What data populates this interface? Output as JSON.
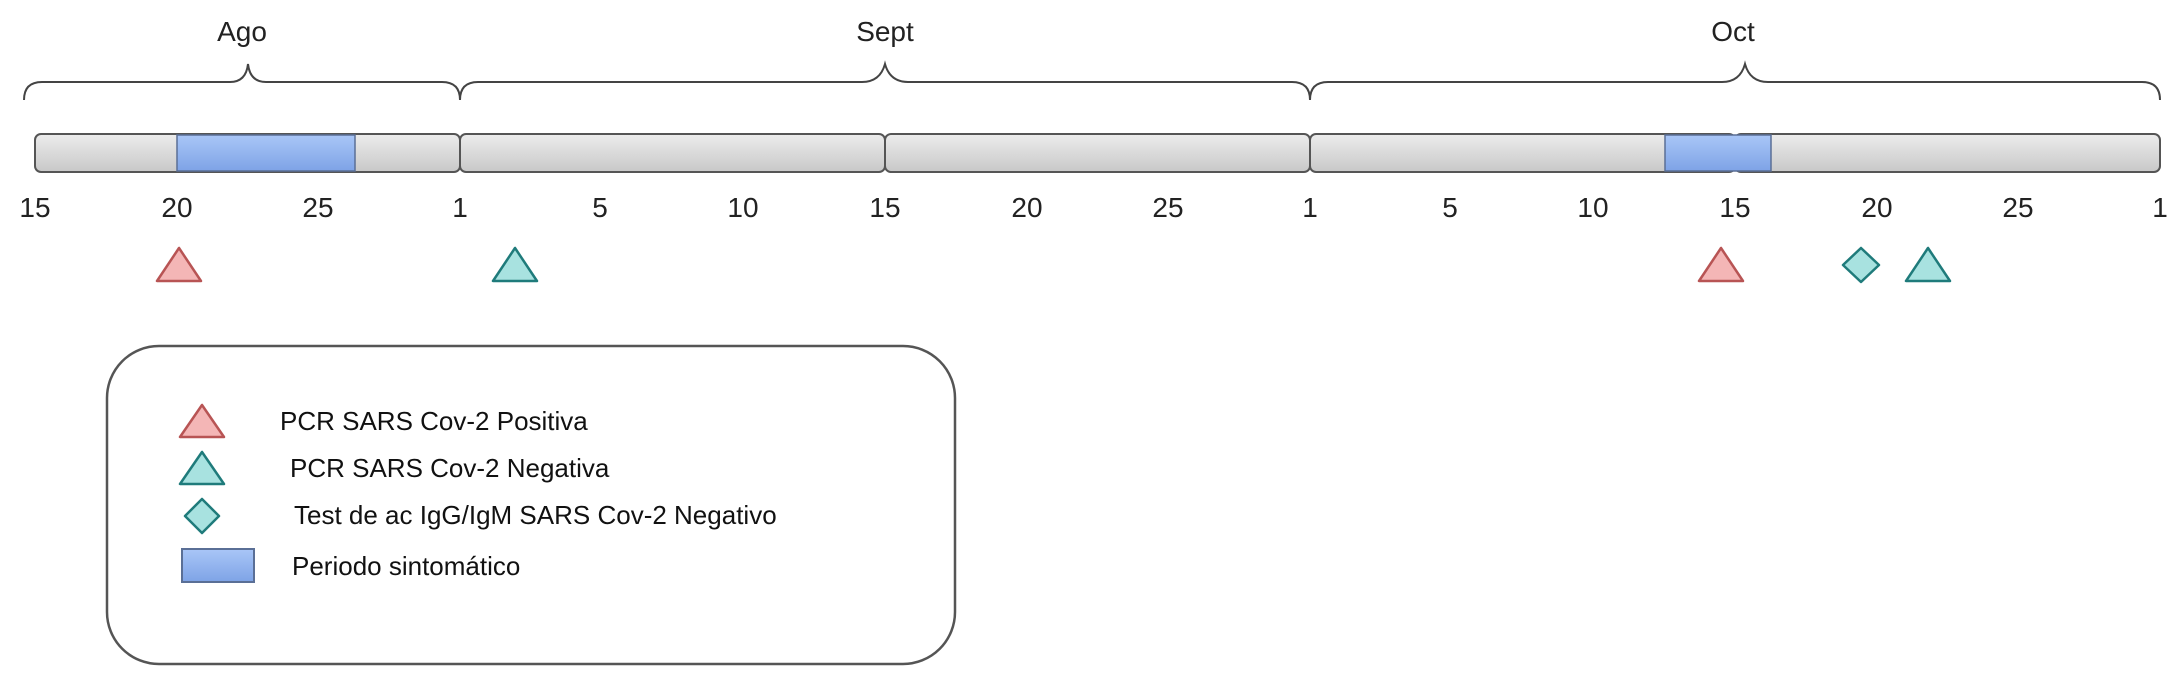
{
  "months": [
    {
      "id": "ago",
      "label": "Ago"
    },
    {
      "id": "sept",
      "label": "Sept"
    },
    {
      "id": "oct",
      "label": "Oct"
    }
  ],
  "ticks": [
    "15",
    "20",
    "25",
    "1",
    "5",
    "10",
    "15",
    "20",
    "25",
    "1",
    "5",
    "10",
    "15",
    "20",
    "25",
    "1"
  ],
  "colors": {
    "positive_fill": "#f4b6b6",
    "positive_stroke": "#b85454",
    "negative_fill": "#a8e2e0",
    "negative_stroke": "#1f7b7b",
    "symptomatic_fill": "#8fb2ef",
    "symptomatic_stroke": "#5a6f96",
    "segment_fill": "#d9d9d9",
    "segment_stroke": "#555555"
  },
  "events": [
    {
      "type": "pcr-positive",
      "date": "Ago 20"
    },
    {
      "type": "pcr-negative",
      "date": "Sept 2"
    },
    {
      "type": "pcr-positive",
      "date": "Oct 14"
    },
    {
      "type": "antibody-negative",
      "date": "Oct 19"
    },
    {
      "type": "pcr-negative",
      "date": "Oct 22"
    }
  ],
  "symptomatic_periods": [
    {
      "start": "Ago 20",
      "end": "Ago 26"
    },
    {
      "start": "Oct 12",
      "end": "Oct 16"
    }
  ],
  "legend": {
    "items": [
      {
        "icon": "triangle-icon",
        "variant": "positive",
        "label": "PCR SARS Cov-2 Positiva"
      },
      {
        "icon": "triangle-icon",
        "variant": "negative",
        "label": "PCR SARS Cov-2 Negativa"
      },
      {
        "icon": "diamond-icon",
        "variant": "antibody",
        "label": "Test de ac IgG/IgM SARS Cov-2 Negativo"
      },
      {
        "icon": "rectangle-icon",
        "variant": "symptomatic",
        "label": "Periodo sintomático"
      }
    ]
  }
}
